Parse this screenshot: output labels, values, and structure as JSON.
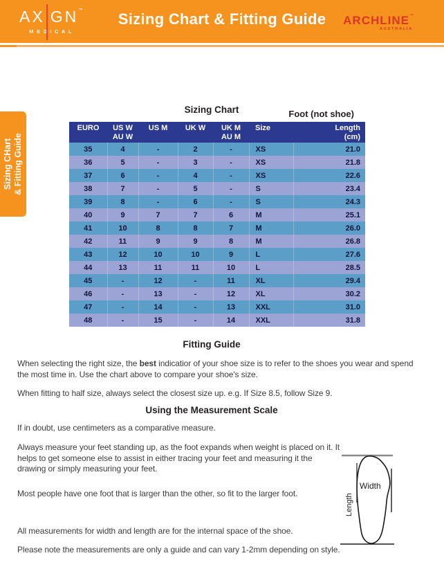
{
  "header": {
    "title": "Sizing Chart & Fitting Guide",
    "axign": {
      "word_left": "AX",
      "word_right": "GN",
      "tm": "™",
      "sub": "MEDICAL"
    },
    "archline": {
      "word": "ARCHLINE",
      "tm": "™",
      "sub": "AUSTRALIA"
    }
  },
  "side_tab": {
    "line1": "Sizing CHart",
    "line2": "& Fitting Guide"
  },
  "sizing_chart": {
    "title": "Sizing Chart",
    "foot_label": "Foot (not shoe)",
    "columns": [
      [
        "EURO"
      ],
      [
        "US W",
        "AU W"
      ],
      [
        "US M"
      ],
      [
        "UK W"
      ],
      [
        "UK M",
        "AU M"
      ],
      [
        "Size"
      ],
      [
        "Length",
        "(cm)"
      ]
    ],
    "rows": [
      [
        "35",
        "4",
        "-",
        "2",
        "-",
        "XS",
        "21.0"
      ],
      [
        "36",
        "5",
        "-",
        "3",
        "-",
        "XS",
        "21.8"
      ],
      [
        "37",
        "6",
        "-",
        "4",
        "-",
        "XS",
        "22.6"
      ],
      [
        "38",
        "7",
        "-",
        "5",
        "-",
        "S",
        "23.4"
      ],
      [
        "39",
        "8",
        "-",
        "6",
        "-",
        "S",
        "24.3"
      ],
      [
        "40",
        "9",
        "7",
        "7",
        "6",
        "M",
        "25.1"
      ],
      [
        "41",
        "10",
        "8",
        "8",
        "7",
        "M",
        "26.0"
      ],
      [
        "42",
        "11",
        "9",
        "9",
        "8",
        "M",
        "26.8"
      ],
      [
        "43",
        "12",
        "10",
        "10",
        "9",
        "L",
        "27.6"
      ],
      [
        "44",
        "13",
        "11",
        "11",
        "10",
        "L",
        "28.5"
      ],
      [
        "45",
        "-",
        "12",
        "-",
        "11",
        "XL",
        "29.4"
      ],
      [
        "46",
        "-",
        "13",
        "-",
        "12",
        "XL",
        "30.2"
      ],
      [
        "47",
        "-",
        "14",
        "-",
        "13",
        "XXL",
        "31.0"
      ],
      [
        "48",
        "-",
        "15",
        "-",
        "14",
        "XXL",
        "31.8"
      ]
    ]
  },
  "fitting_guide": {
    "heading": "Fitting Guide",
    "p1_before": "When selecting the right size, the ",
    "p1_bold": "best",
    "p1_after": " indicatior of your shoe size is to refer to the shoes you wear and spend the most time in. Use the chart above to compare your shoe's size.",
    "p2": "When fitting to half size, always select the closest size up. e.g. If Size 8.5, follow Size 9."
  },
  "measurement": {
    "heading": "Using the Measurement Scale",
    "p1": "If in doubt, use centimeters as a comparative measure.",
    "p2": "Always measure your feet standing up, as the foot expands when weight is placed on it. It helps to get someone else to assist in either tracing your feet and measuring it the drawing or simply measuring your feet.",
    "p3": "Most people have one foot that is larger than the other, so fit to the larger foot.",
    "p4": "All measurements for width and length are for the internal space of the shoe.",
    "p5": "Please note the measurements are only a guide and can vary 1-2mm depending on style."
  },
  "diagram": {
    "width_label": "Width",
    "length_label": "Length"
  },
  "colors": {
    "orange": "#F6921E",
    "header_navy": "#2B3990",
    "row_teal": "#5B9EC7",
    "row_periwinkle": "#9CA4D6",
    "axign_red": "#E8432E",
    "archline_red": "#DD3526"
  }
}
